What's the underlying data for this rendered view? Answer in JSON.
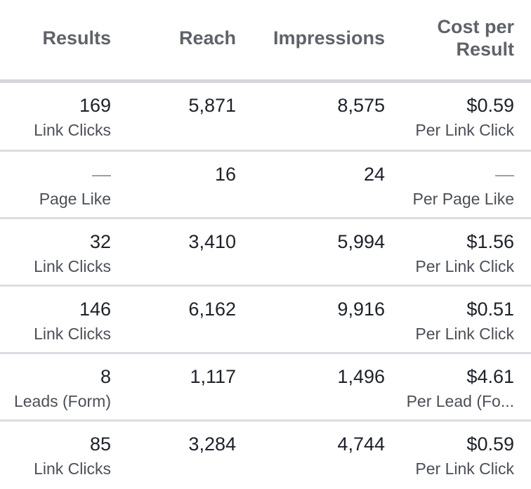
{
  "headers": {
    "results": "Results",
    "reach": "Reach",
    "impressions": "Impressions",
    "cost_line1": "Cost per",
    "cost_line2": "Result"
  },
  "rows": [
    {
      "results": "169",
      "results_sub": "Link Clicks",
      "reach": "5,871",
      "impressions": "8,575",
      "cost": "$0.59",
      "cost_sub": "Per Link Click"
    },
    {
      "results": "—",
      "results_sub": "Page Like",
      "reach": "16",
      "impressions": "24",
      "cost": "—",
      "cost_sub": "Per Page Like"
    },
    {
      "results": "32",
      "results_sub": "Link Clicks",
      "reach": "3,410",
      "impressions": "5,994",
      "cost": "$1.56",
      "cost_sub": "Per Link Click"
    },
    {
      "results": "146",
      "results_sub": "Link Clicks",
      "reach": "6,162",
      "impressions": "9,916",
      "cost": "$0.51",
      "cost_sub": "Per Link Click"
    },
    {
      "results": "8",
      "results_sub": "Leads (Form)",
      "reach": "1,117",
      "impressions": "1,496",
      "cost": "$4.61",
      "cost_sub": "Per Lead (Fo..."
    },
    {
      "results": "85",
      "results_sub": "Link Clicks",
      "reach": "3,284",
      "impressions": "4,744",
      "cost": "$0.59",
      "cost_sub": "Per Link Click"
    }
  ]
}
